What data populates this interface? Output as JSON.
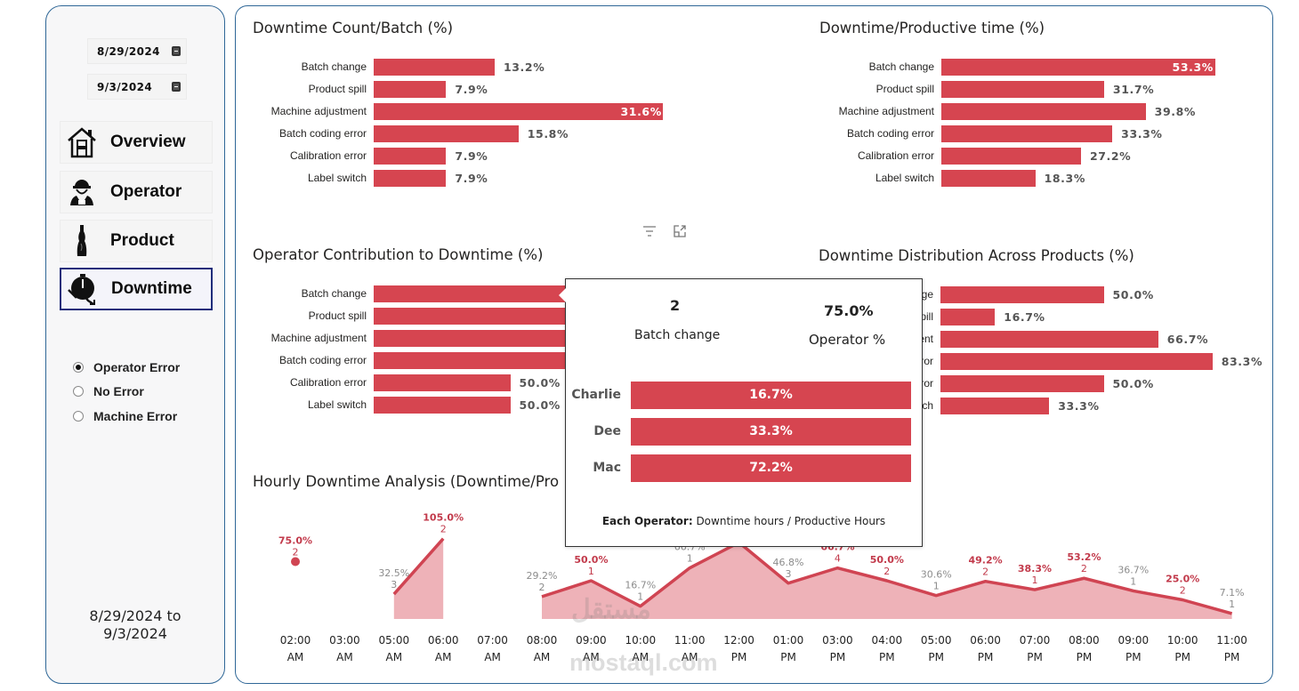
{
  "sidebar": {
    "start_date": "8/29/2024",
    "end_date": "9/3/2024",
    "nav": [
      {
        "label": "Overview",
        "icon": "house-icon",
        "active": false
      },
      {
        "label": "Operator",
        "icon": "worker-icon",
        "active": false
      },
      {
        "label": "Product",
        "icon": "bottle-icon",
        "active": false
      },
      {
        "label": "Downtime",
        "icon": "downtime-clock-icon",
        "active": true
      }
    ],
    "error_filter": [
      {
        "label": "Operator Error",
        "selected": true
      },
      {
        "label": "No Error",
        "selected": false
      },
      {
        "label": "Machine Error",
        "selected": false
      }
    ],
    "range_line1": "8/29/2024 to",
    "range_line2": "9/3/2024"
  },
  "visual_header": {
    "filter_icon": "filter-icon",
    "focus_icon": "focus-mode-icon"
  },
  "chart_data": [
    {
      "type": "bar",
      "orientation": "horizontal",
      "title": "Downtime Count/Batch (%)",
      "categories": [
        "Batch change",
        "Product spill",
        "Machine adjustment",
        "Batch coding error",
        "Calibration error",
        "Label switch"
      ],
      "values": [
        13.2,
        7.9,
        31.6,
        15.8,
        7.9,
        7.9
      ],
      "labels": [
        "13.2%",
        "7.9%",
        "31.6%",
        "15.8%",
        "7.9%",
        "7.9%"
      ],
      "color": "#d64550"
    },
    {
      "type": "bar",
      "orientation": "horizontal",
      "title": "Downtime/Productive time (%)",
      "categories": [
        "Batch change",
        "Product spill",
        "Machine adjustment",
        "Batch coding error",
        "Calibration error",
        "Label switch"
      ],
      "values": [
        53.3,
        31.7,
        39.8,
        33.3,
        27.2,
        18.3
      ],
      "labels": [
        "53.3%",
        "31.7%",
        "39.8%",
        "33.3%",
        "27.2%",
        "18.3%"
      ],
      "color": "#d64550"
    },
    {
      "type": "bar",
      "orientation": "horizontal",
      "title": "Operator Contribution to Downtime (%)",
      "categories": [
        "Batch change",
        "Product spill",
        "Machine adjustment",
        "Batch coding error",
        "Calibration error",
        "Label switch"
      ],
      "values": [
        75.0,
        75.0,
        75.0,
        75.0,
        50.0,
        50.0
      ],
      "labels": [
        "",
        "",
        "",
        "",
        "50.0%",
        "50.0%"
      ],
      "color": "#d64550"
    },
    {
      "type": "bar",
      "orientation": "horizontal",
      "title": "Downtime Distribution Across Products (%)",
      "categories": [
        "Batch change",
        "Product spill",
        "Machine adjustment",
        "Batch coding error",
        "Calibration error",
        "Label switch"
      ],
      "values": [
        50.0,
        16.7,
        66.7,
        83.3,
        50.0,
        33.3
      ],
      "labels": [
        "50.0%",
        "16.7%",
        "66.7%",
        "83.3%",
        "50.0%",
        "33.3%"
      ],
      "color": "#d64550"
    },
    {
      "type": "area",
      "title": "Hourly Downtime Analysis (Downtime/Pro",
      "x": [
        "02:00 AM",
        "03:00 AM",
        "05:00 AM",
        "06:00 AM",
        "07:00 AM",
        "08:00 AM",
        "09:00 AM",
        "10:00 AM",
        "11:00 AM",
        "12:00 PM",
        "01:00 PM",
        "03:00 PM",
        "04:00 PM",
        "05:00 PM",
        "06:00 PM",
        "07:00 PM",
        "08:00 PM",
        "09:00 PM",
        "10:00 PM",
        "11:00 PM"
      ],
      "values": [
        75.0,
        null,
        32.5,
        105.0,
        null,
        29.2,
        50.0,
        16.7,
        66.7,
        100.0,
        46.8,
        66.7,
        50.0,
        30.6,
        49.2,
        38.3,
        53.2,
        36.7,
        25.0,
        7.1
      ],
      "labels": [
        "75.0%",
        "",
        "32.5%",
        "105.0%",
        "",
        "29.2%",
        "50.0%",
        "16.7%",
        "66.7%",
        "",
        "46.8%",
        "66.7%",
        "50.0%",
        "30.6%",
        "49.2%",
        "38.3%",
        "53.2%",
        "36.7%",
        "25.0%",
        "7.1%"
      ],
      "counts": [
        "2",
        "",
        "3",
        "2",
        "",
        "2",
        "1",
        "1",
        "1",
        "",
        "3",
        "4",
        "2",
        "1",
        "2",
        "1",
        "2",
        "1",
        "2",
        "1"
      ],
      "highlight": [
        true,
        false,
        false,
        true,
        false,
        false,
        true,
        false,
        false,
        false,
        false,
        true,
        true,
        false,
        true,
        true,
        true,
        false,
        true,
        false
      ],
      "line_color": "#d04452",
      "fill_color": "#eeb2b8",
      "highlight_label_color": "#c23a4b",
      "normal_label_color": "#8c8c8c"
    }
  ],
  "tooltip": {
    "count": "2",
    "category": "Batch change",
    "operator_pct": "75.0%",
    "operator_pct_label": "Operator %",
    "operators": [
      {
        "name": "Charlie",
        "value": "16.7%"
      },
      {
        "name": "Dee",
        "value": "33.3%"
      },
      {
        "name": "Mac",
        "value": "72.2%"
      }
    ],
    "footer_bold": "Each Operator:",
    "footer_text": " Downtime hours / Productive Hours"
  },
  "watermark": {
    "arabic": "مستقل",
    "latin": "mostaql.com"
  }
}
